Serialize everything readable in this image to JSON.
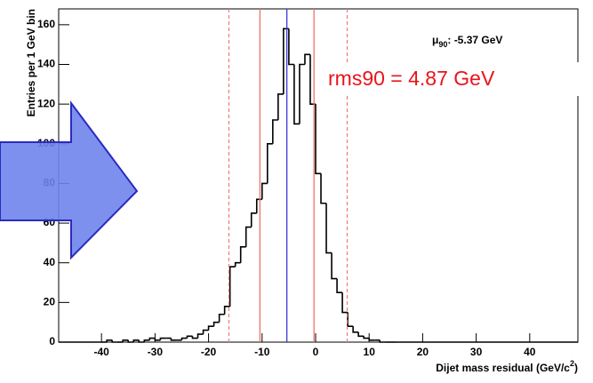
{
  "chart_data": {
    "type": "histogram",
    "ylabel": "Entries per 1 GeV bin",
    "xlabel": [
      "Dijet mass residual (GeV/c",
      "2",
      ")"
    ],
    "annotation_mu": {
      "symbol": "μ",
      "subscript": "90",
      "text": ": -5.37 GeV"
    },
    "annotation_rms": "rms90 = 4.87 GeV",
    "bins": [
      -40,
      -39,
      -38,
      -37,
      -36,
      -35,
      -34,
      -33,
      -32,
      -31,
      -30,
      -29,
      -28,
      -27,
      -26,
      -25,
      -24,
      -23,
      -22,
      -21,
      -20,
      -19,
      -18,
      -17,
      -16,
      -15,
      -14,
      -13,
      -12,
      -11,
      -10,
      -9,
      -8,
      -7,
      -6,
      -5,
      -4,
      -3,
      -2,
      -1,
      0,
      1,
      2,
      3,
      4,
      5,
      6,
      7,
      8,
      9,
      10,
      11,
      12,
      13,
      14,
      15
    ],
    "values": [
      0,
      1,
      0,
      0,
      1,
      0,
      1,
      0,
      1,
      2,
      1,
      2,
      2,
      1,
      1,
      2,
      3,
      2,
      4,
      6,
      8,
      10,
      14,
      18,
      38,
      40,
      48,
      58,
      65,
      72,
      80,
      100,
      112,
      125,
      158,
      140,
      110,
      140,
      145,
      120,
      85,
      70,
      45,
      32,
      25,
      15,
      8,
      5,
      3,
      2,
      1,
      1,
      0,
      0,
      0
    ],
    "color": "#000000",
    "vlines": [
      {
        "x": -16.2,
        "color": "#f08080",
        "dashed": true
      },
      {
        "x": -10.4,
        "color": "#f07070",
        "dashed": false
      },
      {
        "x": -5.37,
        "color": "#3a3ad8",
        "dashed": false
      },
      {
        "x": -0.3,
        "color": "#f07070",
        "dashed": false
      },
      {
        "x": 5.9,
        "color": "#f08080",
        "dashed": true
      }
    ],
    "xlim": [
      -48,
      49
    ],
    "ylim": [
      0,
      168
    ],
    "xticks": [
      -40,
      -30,
      -20,
      -10,
      0,
      10,
      20,
      30,
      40
    ],
    "yticks": [
      0,
      20,
      40,
      60,
      80,
      100,
      120,
      140,
      160
    ]
  }
}
